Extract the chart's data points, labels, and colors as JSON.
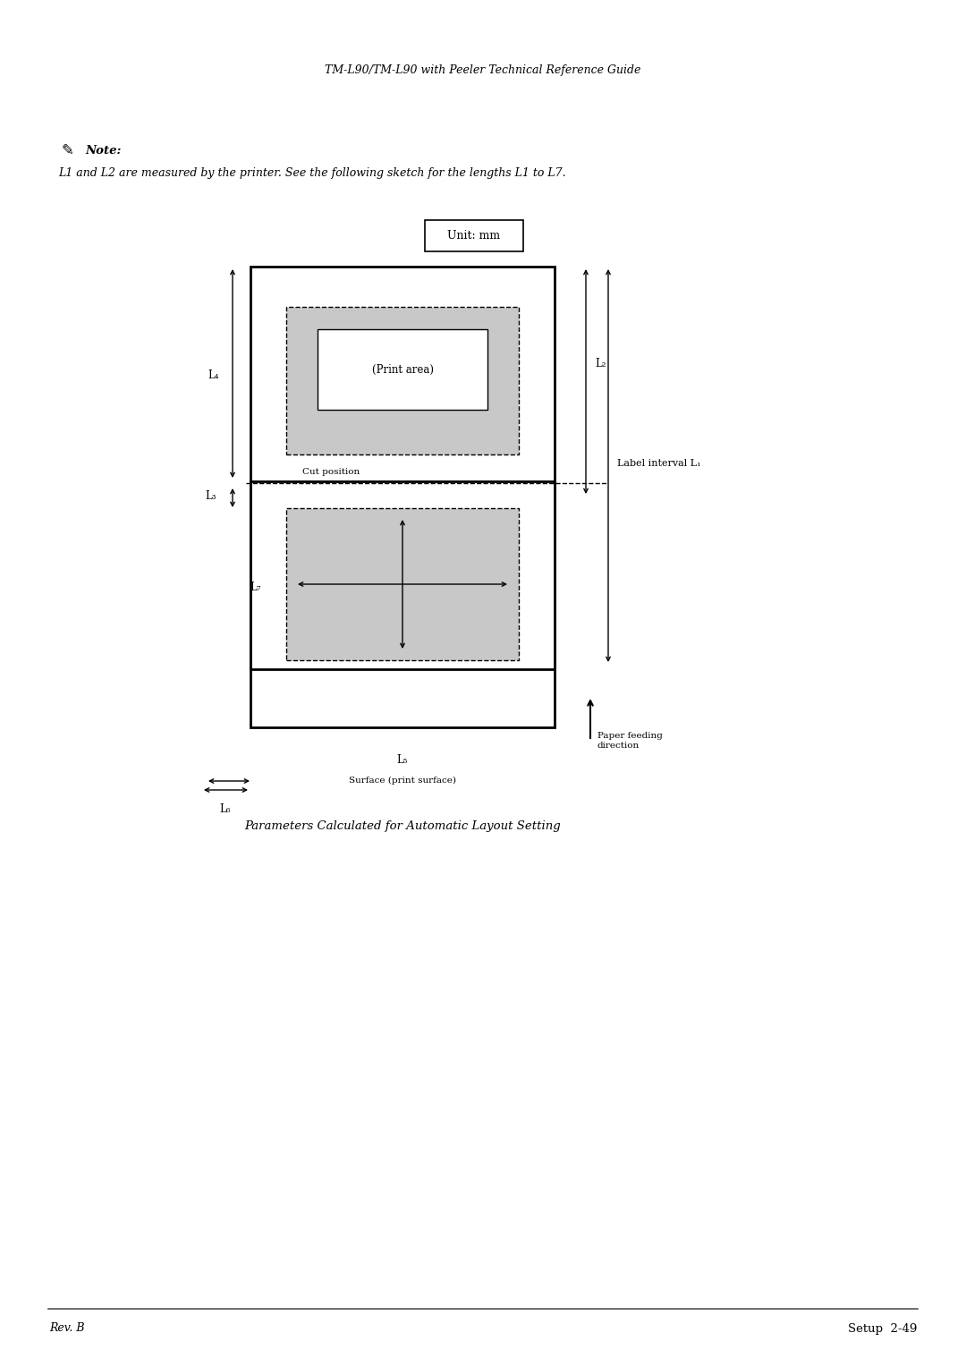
{
  "bg_color": "#ffffff",
  "header_text": "TM-L90/TM-L90 with Peeler Technical Reference Guide",
  "note_text": "Note:",
  "note_body": "L1 and L2 are measured by the printer. See the following sketch for the lengths L1 to L7.",
  "unit_box_text": "Unit: mm",
  "caption_text": "Parameters Calculated for Automatic Layout Setting",
  "footer_left": "Rev. B",
  "footer_right": "Setup  2-49",
  "label_color": "#000000",
  "gray_fill": "#c8c8c8",
  "white_fill": "#ffffff",
  "line_color": "#000000",
  "dashed_color": "#555555"
}
